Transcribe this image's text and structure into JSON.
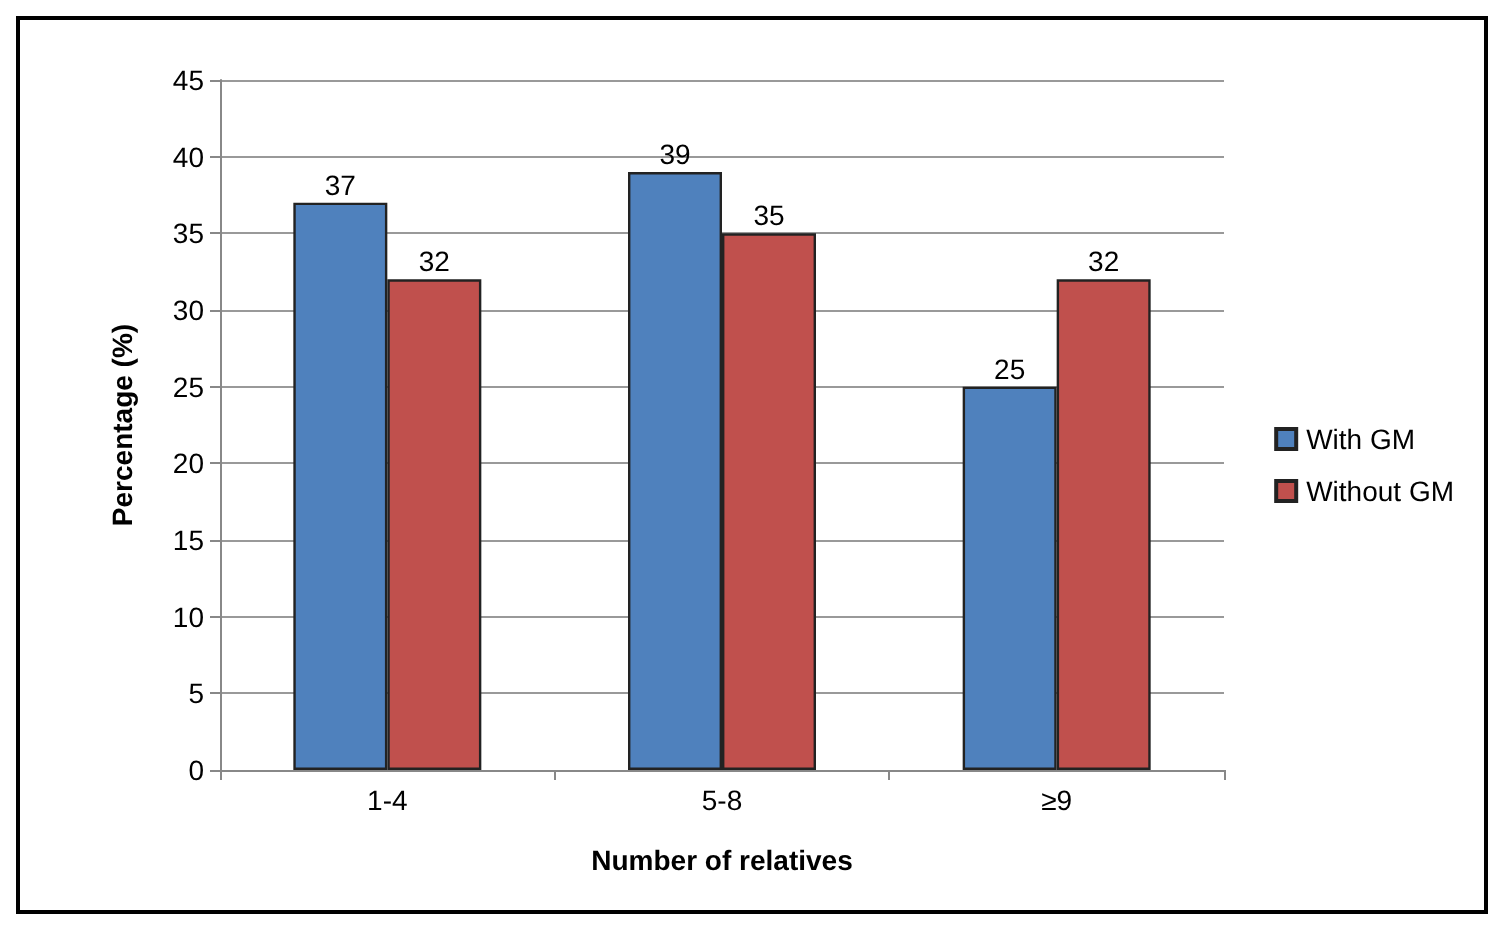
{
  "chart_data": {
    "type": "bar",
    "xlabel": "Number of relatives",
    "ylabel": "Percentage (%)",
    "categories": [
      "1-4",
      "5-8",
      "≥9"
    ],
    "series": [
      {
        "name": "With GM",
        "color": "#4f81bd",
        "values": [
          37,
          39,
          25
        ]
      },
      {
        "name": "Without GM",
        "color": "#c0504d",
        "values": [
          32,
          35,
          32
        ]
      }
    ],
    "ylim": [
      0,
      45
    ],
    "yticks": [
      0,
      5,
      10,
      15,
      20,
      25,
      30,
      35,
      40,
      45
    ],
    "grid": "y",
    "legend": "right",
    "data_labels": true
  }
}
